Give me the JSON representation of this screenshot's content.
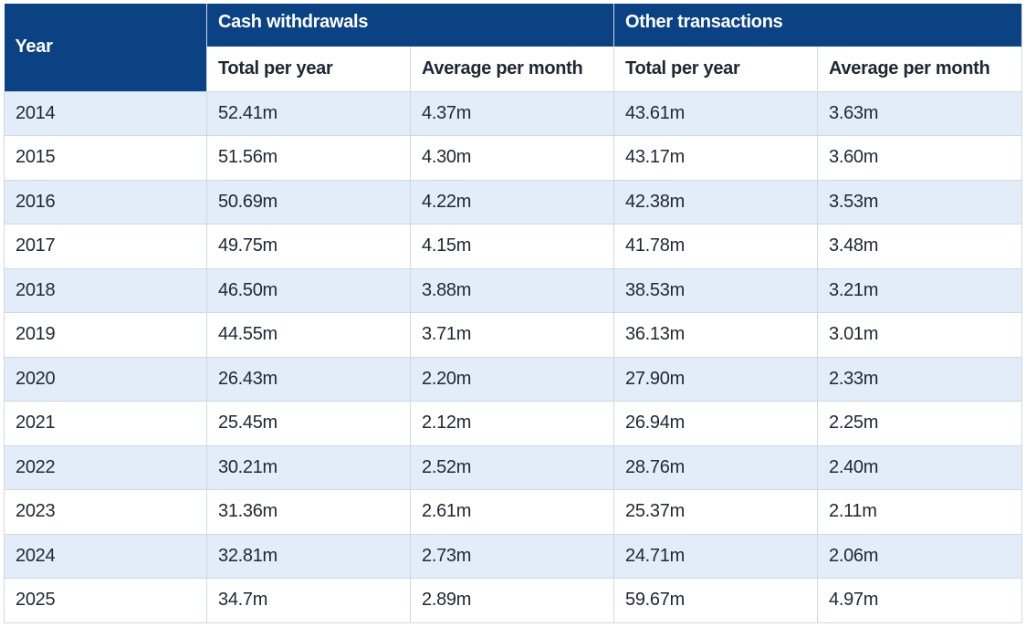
{
  "table": {
    "year_header": "Year",
    "groups": [
      {
        "label": "Cash withdrawals",
        "columns": [
          "Total per year",
          "Average per month"
        ]
      },
      {
        "label": "Other transactions",
        "columns": [
          "Total per year",
          "Average per month"
        ]
      }
    ],
    "rows": [
      {
        "year": "2014",
        "cash_total": "52.41m",
        "cash_avg": "4.37m",
        "other_total": "43.61m",
        "other_avg": "3.63m"
      },
      {
        "year": "2015",
        "cash_total": "51.56m",
        "cash_avg": "4.30m",
        "other_total": "43.17m",
        "other_avg": "3.60m"
      },
      {
        "year": "2016",
        "cash_total": "50.69m",
        "cash_avg": "4.22m",
        "other_total": "42.38m",
        "other_avg": "3.53m"
      },
      {
        "year": "2017",
        "cash_total": "49.75m",
        "cash_avg": "4.15m",
        "other_total": "41.78m",
        "other_avg": "3.48m"
      },
      {
        "year": "2018",
        "cash_total": "46.50m",
        "cash_avg": "3.88m",
        "other_total": "38.53m",
        "other_avg": "3.21m"
      },
      {
        "year": "2019",
        "cash_total": "44.55m",
        "cash_avg": "3.71m",
        "other_total": "36.13m",
        "other_avg": "3.01m"
      },
      {
        "year": "2020",
        "cash_total": "26.43m",
        "cash_avg": "2.20m",
        "other_total": "27.90m",
        "other_avg": "2.33m"
      },
      {
        "year": "2021",
        "cash_total": "25.45m",
        "cash_avg": "2.12m",
        "other_total": "26.94m",
        "other_avg": "2.25m"
      },
      {
        "year": "2022",
        "cash_total": "30.21m",
        "cash_avg": "2.52m",
        "other_total": "28.76m",
        "other_avg": "2.40m"
      },
      {
        "year": "2023",
        "cash_total": "31.36m",
        "cash_avg": "2.61m",
        "other_total": "25.37m",
        "other_avg": "2.11m"
      },
      {
        "year": "2024",
        "cash_total": "32.81m",
        "cash_avg": "2.73m",
        "other_total": "24.71m",
        "other_avg": "2.06m"
      },
      {
        "year": "2025",
        "cash_total": "34.7m",
        "cash_avg": "2.89m",
        "other_total": "59.67m",
        "other_avg": "4.97m"
      }
    ]
  },
  "colors": {
    "header_bg": "#0b4284",
    "header_text": "#ffffff",
    "row_shade": "#e2edf9",
    "row_plain": "#ffffff",
    "border": "#cfd8e3",
    "text": "#1f2733"
  }
}
